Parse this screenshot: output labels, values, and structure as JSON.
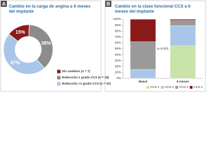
{
  "chart_data": [
    {
      "type": "donut",
      "label": "A",
      "title": "Cambio en la carga de angina a 6 meses del implante",
      "categories": [
        "Sin cambios (n = 7)",
        "Reducción 1 grado CCS (n = 18)",
        "Reducción >1 grado CCS (n = 22)"
      ],
      "values": [
        15,
        38,
        47
      ],
      "value_labels": [
        "15%",
        "38%",
        "47%"
      ],
      "colors": [
        "#8b1a1a",
        "#8c8c8c",
        "#a9c6e8"
      ]
    },
    {
      "type": "stacked-bar",
      "label": "B",
      "title": "Cambio en la clase funcional CCS a 6 meses del implante",
      "categories": [
        "Basal",
        "6 meses"
      ],
      "series": [
        {
          "name": "CCS 1",
          "color": "#c9e3a8",
          "values": [
            0,
            55
          ]
        },
        {
          "name": "CCS 2",
          "color": "#a9c6e8",
          "values": [
            15,
            34
          ]
        },
        {
          "name": "CCS 3",
          "color": "#9a9a9a",
          "values": [
            47,
            9
          ]
        },
        {
          "name": "CCS 4",
          "color": "#8b1a1a",
          "values": [
            38,
            2
          ]
        }
      ],
      "annotation": "p=0,001",
      "ylim": [
        0,
        100
      ],
      "yticks": [
        {
          "value": 0,
          "label": "0%"
        },
        {
          "value": 10,
          "label": "10%"
        },
        {
          "value": 20,
          "label": "20%"
        },
        {
          "value": 30,
          "label": "30%"
        },
        {
          "value": 40,
          "label": "40%"
        },
        {
          "value": 50,
          "label": "50%"
        },
        {
          "value": 60,
          "label": "60%"
        },
        {
          "value": 70,
          "label": "70%"
        },
        {
          "value": 80,
          "label": "80%"
        },
        {
          "value": 90,
          "label": "90%"
        },
        {
          "value": 100,
          "label": "100%"
        }
      ],
      "grid": false
    }
  ]
}
